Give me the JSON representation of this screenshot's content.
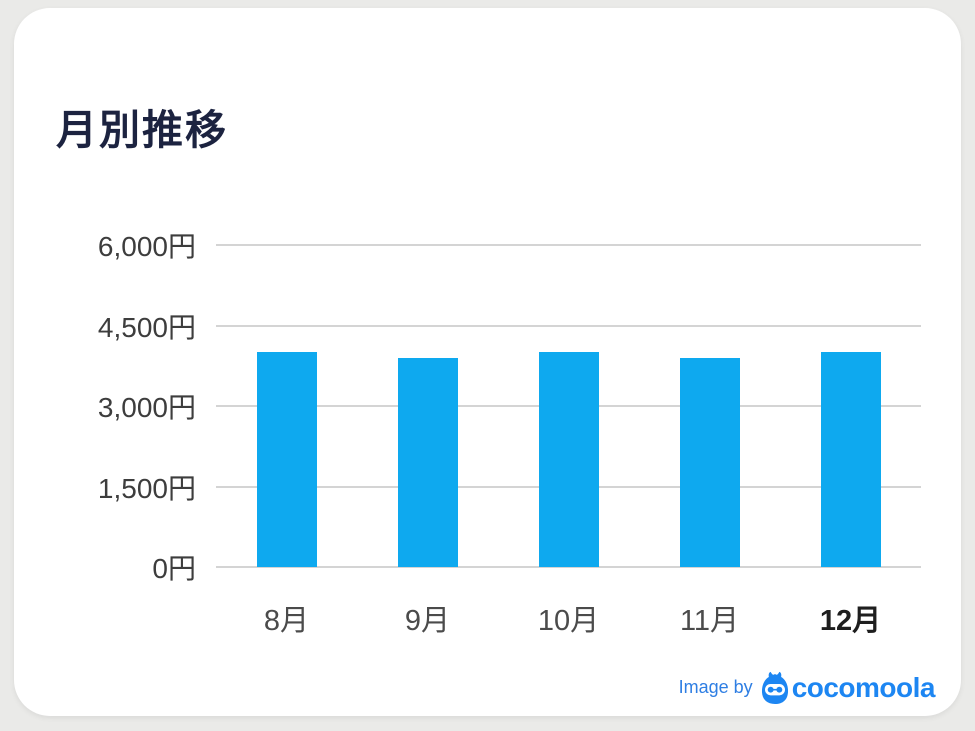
{
  "page": {
    "background_color": "#eaeae8",
    "card_background": "#ffffff"
  },
  "header": {
    "title": "月別推移"
  },
  "chart_data": {
    "type": "bar",
    "title": "月別推移",
    "categories": [
      "8月",
      "9月",
      "10月",
      "11月",
      "12月"
    ],
    "values": [
      4000,
      3900,
      4000,
      3900,
      4000
    ],
    "unit": "円",
    "ylim": [
      0,
      6000
    ],
    "yticks": [
      {
        "value": 6000,
        "label": "6,000円"
      },
      {
        "value": 4500,
        "label": "4,500円"
      },
      {
        "value": 3000,
        "label": "3,000円"
      },
      {
        "value": 1500,
        "label": "1,500円"
      },
      {
        "value": 0,
        "label": "0円"
      }
    ],
    "xlabel": "",
    "ylabel": "",
    "grid": true,
    "legend": false,
    "bar_color": "#0ea9ef",
    "gridline_color": "#d4d4d4",
    "emphasized_category": "12月"
  },
  "footer": {
    "credit_prefix": "Image by",
    "brand_name": "cocomoola",
    "credit_color": "#2e7ee3",
    "brand_color": "#1d86f2",
    "mascot_icon": "money-bag-mascot-icon"
  }
}
